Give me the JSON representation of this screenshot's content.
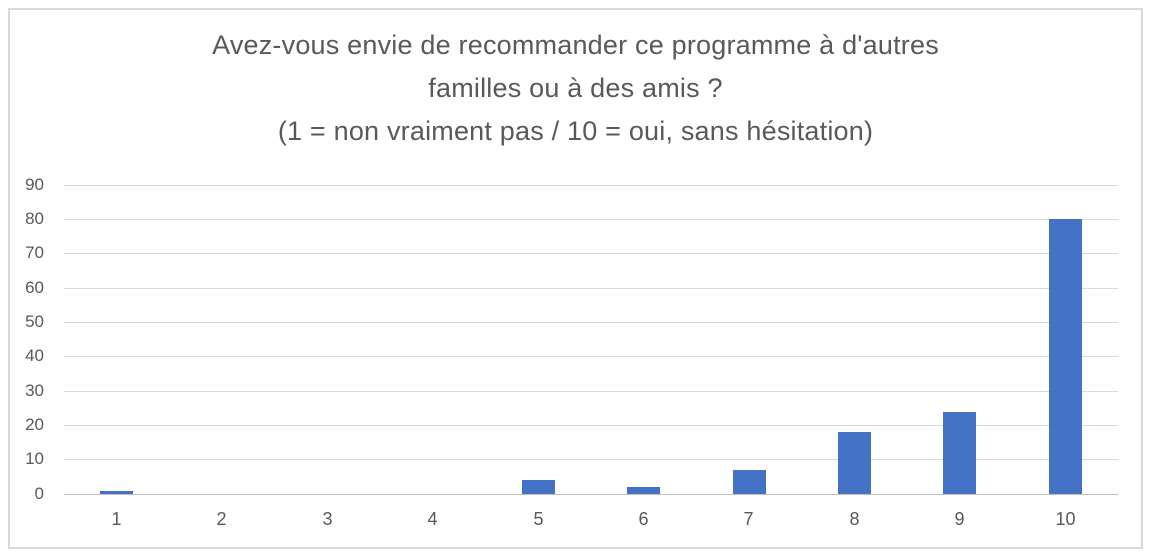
{
  "chart": {
    "title_lines": [
      "Avez-vous envie de recommander ce programme à d'autres",
      "familles ou à des amis ?",
      "(1 = non vraiment pas / 10 = oui, sans hésitation)"
    ],
    "colors": {
      "bar": "#4472C4",
      "gridline": "#D9D9D9",
      "axis_line": "#BFBFBF",
      "text": "#595959",
      "frame_border": "#D9D9D9",
      "background": "#FFFFFF"
    }
  },
  "chart_data": {
    "type": "bar",
    "title": "Avez-vous envie de recommander ce programme à d'autres familles ou à des amis ? (1 = non vraiment pas / 10 = oui, sans hésitation)",
    "categories": [
      "1",
      "2",
      "3",
      "4",
      "5",
      "6",
      "7",
      "8",
      "9",
      "10"
    ],
    "values": [
      1,
      0,
      0,
      0,
      4,
      2,
      7,
      18,
      24,
      80
    ],
    "xlabel": "",
    "ylabel": "",
    "ylim": [
      0,
      90
    ],
    "ytick_step": 10,
    "ytick_labels": [
      "0",
      "10",
      "20",
      "30",
      "40",
      "50",
      "60",
      "70",
      "80",
      "90"
    ],
    "grid": true,
    "legend": false,
    "series_color": "#4472C4"
  }
}
